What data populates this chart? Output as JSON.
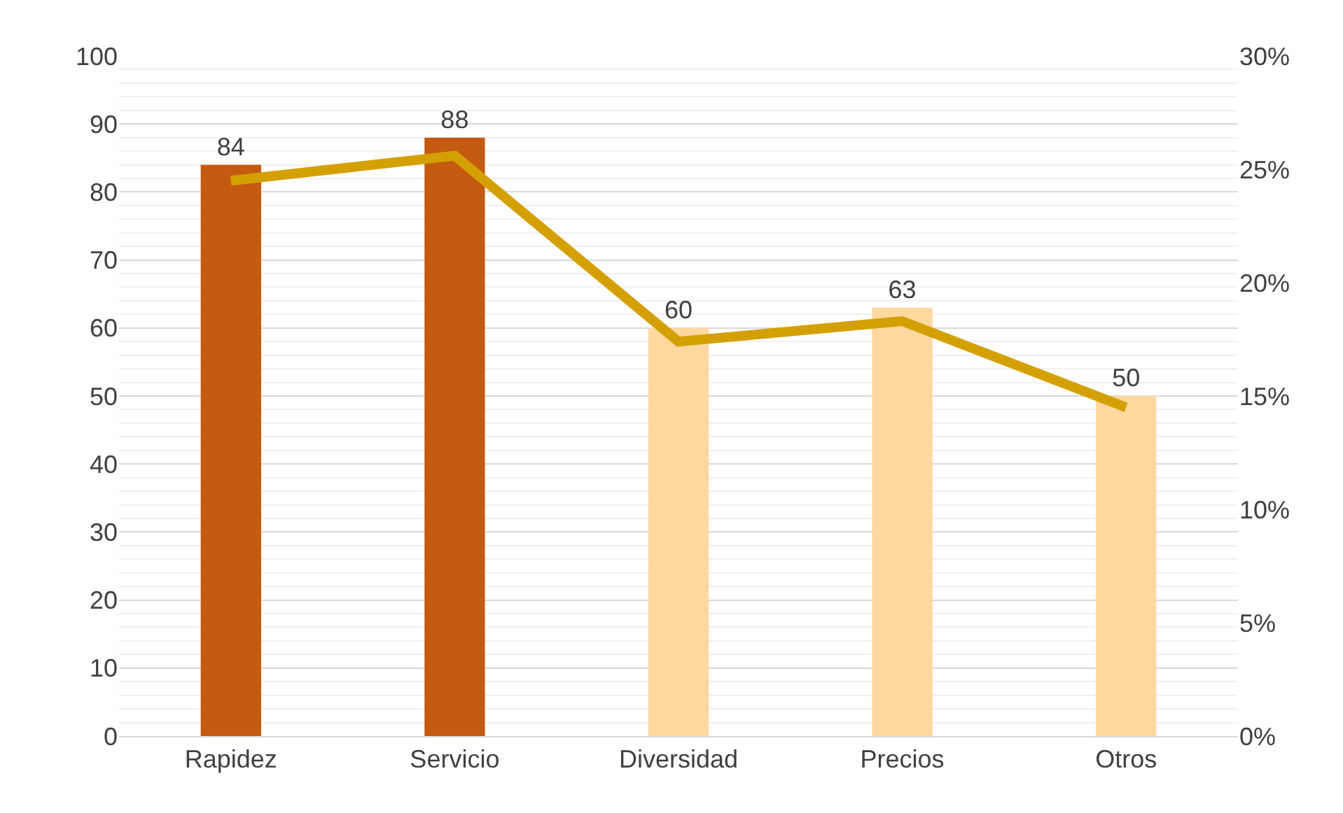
{
  "chart_data": {
    "type": "bar",
    "categories": [
      "Rapidez",
      "Servicio",
      "Diversidad",
      "Precios",
      "Otros"
    ],
    "series": [
      {
        "colors": [
          "#c55a11",
          "#c55a11",
          "#ffd8a0",
          "#ffd8a0",
          "#ffd8a0"
        ],
        "values": [
          84,
          88,
          60,
          63,
          50
        ],
        "value_labels": [
          "84",
          "88",
          "60",
          "63",
          "50"
        ]
      },
      {
        "type": "line",
        "axis": "y2",
        "color": "#d4a000",
        "values": [
          24.5,
          25.6,
          17.4,
          18.3,
          14.5
        ]
      }
    ],
    "ylim": [
      0,
      100
    ],
    "yticks": [
      0,
      10,
      20,
      30,
      40,
      50,
      60,
      70,
      80,
      90,
      100
    ],
    "y2lim": [
      0,
      30
    ],
    "y2ticks": [
      {
        "value": 0,
        "label": "0%"
      },
      {
        "value": 5,
        "label": "5%"
      },
      {
        "value": 10,
        "label": "10%"
      },
      {
        "value": 15,
        "label": "15%"
      },
      {
        "value": 20,
        "label": "20%"
      },
      {
        "value": 25,
        "label": "25%"
      },
      {
        "value": 30,
        "label": "30%"
      }
    ],
    "grid": "y",
    "marker": "none",
    "line_style": "solid"
  }
}
